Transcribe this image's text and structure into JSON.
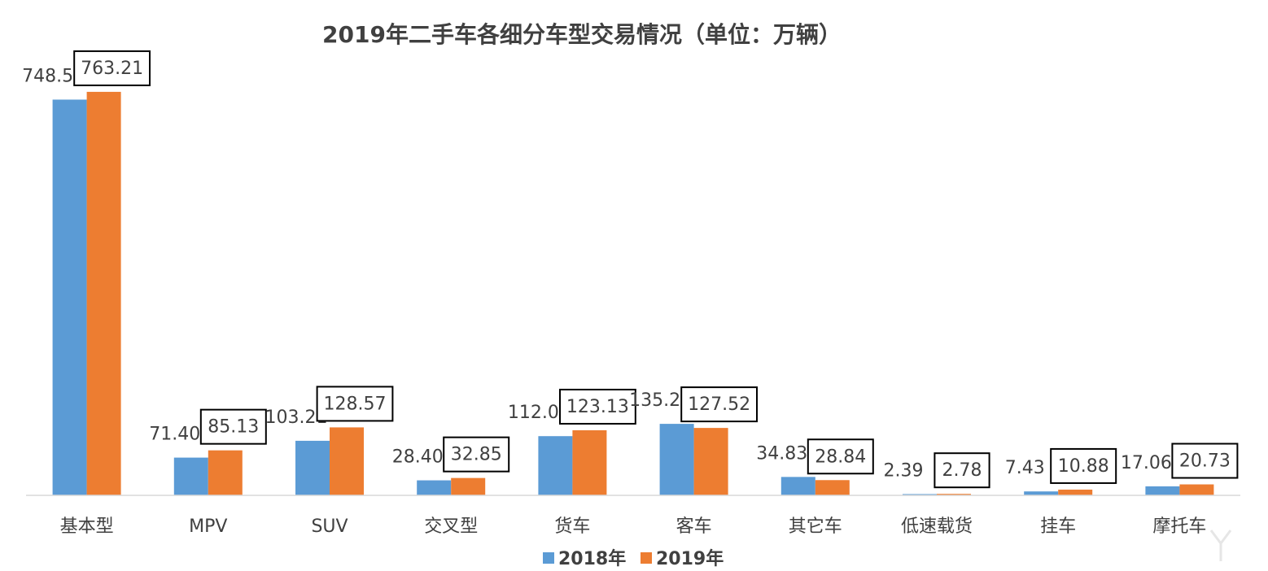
{
  "chart_data": {
    "type": "bar",
    "title": "2019年二手车各细分车型交易情况（单位：万辆）",
    "categories": [
      "基本型",
      "MPV",
      "SUV",
      "交叉型",
      "货车",
      "客车",
      "其它车",
      "低速载货",
      "挂车",
      "摩托车"
    ],
    "series": [
      {
        "name": "2018年",
        "color": "#5B9BD5",
        "values": [
          748.52,
          71.4,
          103.21,
          28.4,
          112.0,
          135.24,
          34.83,
          2.39,
          7.43,
          17.06
        ],
        "labels": [
          "748.52",
          "71.40",
          "103.21",
          "28.40",
          "112.00",
          "135.24",
          "34.83",
          "2.39",
          "7.43",
          "17.06"
        ]
      },
      {
        "name": "2019年",
        "color": "#ED7D31",
        "values": [
          763.21,
          85.13,
          128.57,
          32.85,
          123.13,
          127.52,
          28.84,
          2.78,
          10.88,
          20.73
        ],
        "labels": [
          "763.21",
          "85.13",
          "128.57",
          "32.85",
          "123.13",
          "127.52",
          "28.84",
          "2.78",
          "10.88",
          "20.73"
        ]
      }
    ],
    "ylim": [
      0,
      800
    ],
    "grid": false,
    "legend": "bottom"
  }
}
